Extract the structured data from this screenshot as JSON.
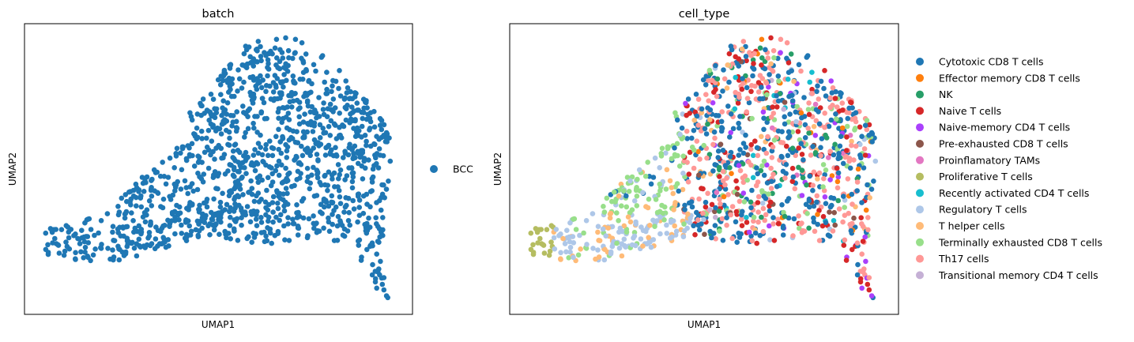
{
  "chart_data": [
    {
      "type": "scatter",
      "title": "batch",
      "xlabel": "UMAP1",
      "ylabel": "UMAP2",
      "ticks": "none",
      "grid": false,
      "legend": {
        "placement": "right",
        "entries": [
          {
            "name": "BCC",
            "color": "#1f77b4"
          }
        ]
      }
    },
    {
      "type": "scatter",
      "title": "cell_type",
      "xlabel": "UMAP1",
      "ylabel": "UMAP2",
      "ticks": "none",
      "grid": false,
      "legend": {
        "placement": "right",
        "entries": [
          {
            "name": "Cytotoxic CD8 T cells",
            "color": "#1f77b4"
          },
          {
            "name": "Effector memory CD8 T cells",
            "color": "#ff7f0e"
          },
          {
            "name": "NK",
            "color": "#279e68"
          },
          {
            "name": "Naive T cells",
            "color": "#d62728"
          },
          {
            "name": "Naive-memory CD4 T cells",
            "color": "#aa40fc"
          },
          {
            "name": "Pre-exhausted CD8 T cells",
            "color": "#8c564b"
          },
          {
            "name": "Proinflamatory TAMs",
            "color": "#e377c2"
          },
          {
            "name": "Proliferative T cells",
            "color": "#b5bd61"
          },
          {
            "name": "Recently activated CD4 T cells",
            "color": "#17becf"
          },
          {
            "name": "Regulatory T cells",
            "color": "#aec7e8"
          },
          {
            "name": "T helper cells",
            "color": "#ffbb78"
          },
          {
            "name": "Terminally exhausted CD8 T cells",
            "color": "#98df8a"
          },
          {
            "name": "Th17 cells",
            "color": "#ff9896"
          },
          {
            "name": "Transitional memory CD4 T cells",
            "color": "#c5b0d5"
          }
        ]
      }
    }
  ]
}
